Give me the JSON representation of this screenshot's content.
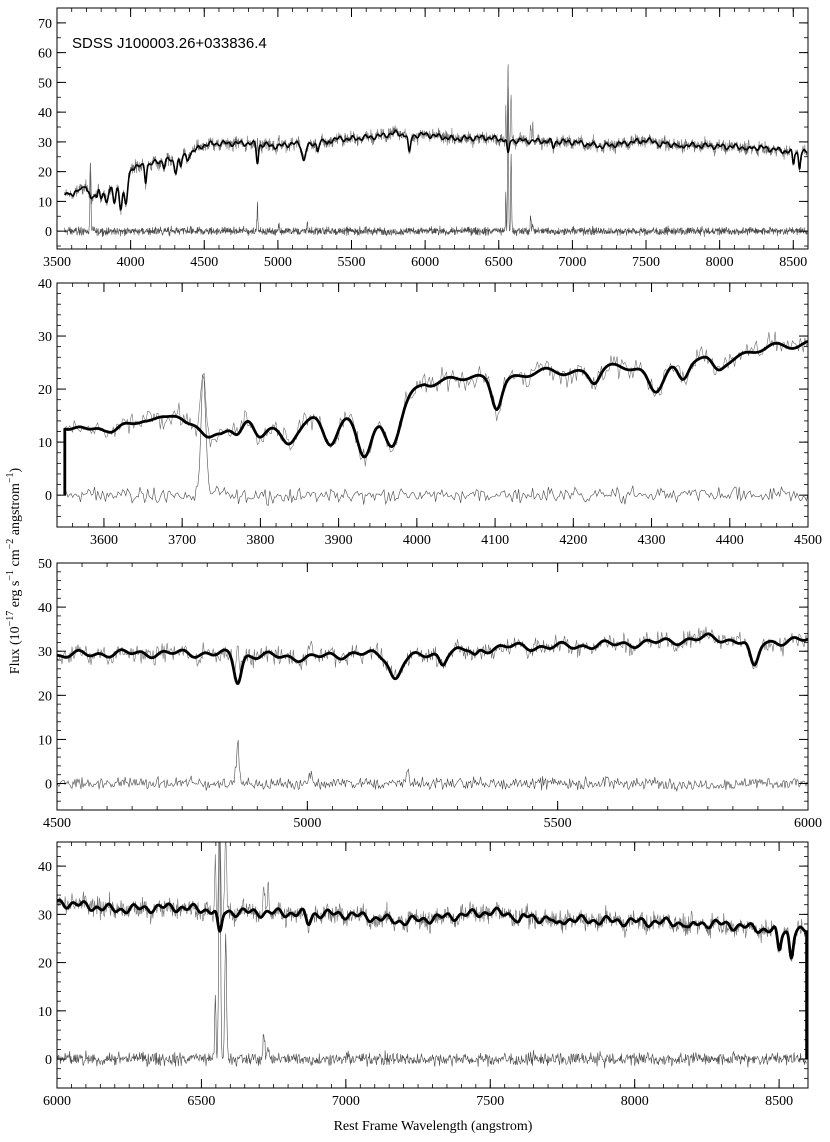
{
  "chart_data": {
    "type": "line",
    "object_name": "SDSS J100003.26+033836.4",
    "xlabel": "Rest Frame Wavelength  (angstrom)",
    "ylabel": "Flux  (10^-17 erg s^-1 cm^-2 angstrom^-1)",
    "ylabel_parts": {
      "prefix": "Flux  (10",
      "exp1": "−17",
      "mid1": " erg s",
      "exp2": "−1",
      "mid2": " cm",
      "exp3": "−2",
      "mid3": " angstrom",
      "exp4": "−1",
      "suffix": ")"
    },
    "grid": false,
    "colors": {
      "model": "#000000",
      "observed": "#6e6e6e",
      "residual": "#4a4a4a",
      "frame": "#000000"
    },
    "panels": [
      {
        "xlim": [
          3500,
          8600
        ],
        "ylim": [
          -6,
          75
        ],
        "xticks": [
          3500,
          4000,
          4500,
          5000,
          5500,
          6000,
          6500,
          7000,
          7500,
          8000,
          8500
        ],
        "yticks": [
          0,
          10,
          20,
          30,
          40,
          50,
          60,
          70
        ],
        "x_minor_step": 100,
        "y_minor_step": 5,
        "show_object_name": true
      },
      {
        "xlim": [
          3540,
          4500
        ],
        "ylim": [
          -6,
          40
        ],
        "xticks": [
          3600,
          3700,
          3800,
          3900,
          4000,
          4100,
          4200,
          4300,
          4400,
          4500
        ],
        "yticks": [
          0,
          10,
          20,
          30,
          40
        ],
        "x_minor_step": 20,
        "y_minor_step": 2,
        "show_object_name": false
      },
      {
        "xlim": [
          4500,
          6000
        ],
        "ylim": [
          -6,
          50
        ],
        "xticks": [
          4500,
          5000,
          5500,
          6000
        ],
        "yticks": [
          0,
          10,
          20,
          30,
          40,
          50
        ],
        "x_minor_step": 50,
        "y_minor_step": 2,
        "show_object_name": false
      },
      {
        "xlim": [
          6000,
          8600
        ],
        "ylim": [
          -6,
          45
        ],
        "xticks": [
          6000,
          6500,
          7000,
          7500,
          8000,
          8500
        ],
        "yticks": [
          0,
          10,
          20,
          30,
          40
        ],
        "x_minor_step": 50,
        "y_minor_step": 2,
        "show_object_name": false
      }
    ],
    "series": [
      {
        "name": "model",
        "continuum": [
          [
            3550,
            13
          ],
          [
            3600,
            13
          ],
          [
            3650,
            15
          ],
          [
            3700,
            15
          ],
          [
            3750,
            13
          ],
          [
            3800,
            14
          ],
          [
            3850,
            13.5
          ],
          [
            3900,
            15
          ],
          [
            3950,
            15
          ],
          [
            3990,
            19
          ],
          [
            4010,
            21.5
          ],
          [
            4100,
            22
          ],
          [
            4200,
            23.5
          ],
          [
            4300,
            24
          ],
          [
            4350,
            25.5
          ],
          [
            4400,
            26
          ],
          [
            4500,
            29
          ],
          [
            4600,
            29.5
          ],
          [
            4700,
            29.5
          ],
          [
            4800,
            29.5
          ],
          [
            4900,
            29
          ],
          [
            5000,
            28.5
          ],
          [
            5100,
            29.5
          ],
          [
            5200,
            28.5
          ],
          [
            5300,
            30
          ],
          [
            5400,
            31
          ],
          [
            5500,
            31
          ],
          [
            5600,
            31.5
          ],
          [
            5700,
            32
          ],
          [
            5800,
            33
          ],
          [
            5900,
            32
          ],
          [
            6000,
            32.5
          ],
          [
            6200,
            31
          ],
          [
            6400,
            31.5
          ],
          [
            6600,
            30.5
          ],
          [
            7000,
            30
          ],
          [
            7200,
            28.5
          ],
          [
            7500,
            30.5
          ],
          [
            7700,
            29
          ],
          [
            8000,
            28.5
          ],
          [
            8300,
            28
          ],
          [
            8500,
            26.5
          ],
          [
            8580,
            26.5
          ]
        ],
        "absorption_features": [
          [
            3580,
            1.5,
            8
          ],
          [
            3612,
            1.5,
            8
          ],
          [
            3660,
            1.5,
            10
          ],
          [
            3705,
            1.5,
            8
          ],
          [
            3734,
            2,
            8
          ],
          [
            3750,
            1.5,
            8
          ],
          [
            3771,
            2,
            6
          ],
          [
            3798,
            3,
            7
          ],
          [
            3835,
            4,
            9
          ],
          [
            3889,
            5,
            9
          ],
          [
            3933,
            7,
            9
          ],
          [
            3968,
            8,
            10
          ],
          [
            4102,
            5,
            6
          ],
          [
            4227,
            2,
            6
          ],
          [
            4305,
            4,
            9
          ],
          [
            4340,
            4,
            7
          ],
          [
            4384,
            2,
            7
          ],
          [
            4861,
            6,
            7
          ],
          [
            5175,
            5,
            10
          ],
          [
            5270,
            2,
            6
          ],
          [
            5335,
            1.5,
            6
          ],
          [
            5892,
            6,
            8
          ],
          [
            6563,
            5,
            7
          ],
          [
            6870,
            2,
            8
          ],
          [
            7600,
            1.5,
            8
          ],
          [
            7730,
            1.5,
            8
          ],
          [
            8190,
            1.5,
            8
          ],
          [
            8500,
            4,
            6
          ],
          [
            8542,
            5,
            6
          ]
        ],
        "wiggle_amplitude": 1.0
      },
      {
        "name": "observed",
        "noise_amplitude": 1.8,
        "emission_lines": [
          [
            3727,
            12,
            3
          ],
          [
            4861,
            8,
            3
          ],
          [
            5007,
            3,
            3
          ],
          [
            6548,
            12,
            2
          ],
          [
            6563,
            30,
            3
          ],
          [
            6584,
            18,
            3
          ],
          [
            6716,
            5,
            3
          ],
          [
            6731,
            4,
            3
          ]
        ]
      },
      {
        "name": "residual",
        "baseline": 0,
        "noise_amplitude": 1.2,
        "emission_lines": [
          [
            3727,
            23,
            3
          ],
          [
            4861,
            9,
            3
          ],
          [
            5007,
            3,
            3
          ],
          [
            5200,
            4,
            2
          ],
          [
            6548,
            14,
            2
          ],
          [
            6563,
            50,
            3
          ],
          [
            6584,
            26,
            3
          ],
          [
            6716,
            5,
            3
          ],
          [
            6731,
            3,
            3
          ]
        ]
      }
    ]
  }
}
